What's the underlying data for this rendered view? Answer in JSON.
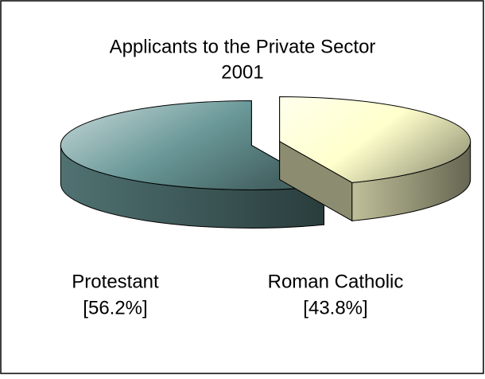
{
  "chart_data": {
    "type": "pie",
    "title": [
      "Applicants to the Private Sector",
      "2001"
    ],
    "categories": [
      "Protestant",
      "Roman Catholic"
    ],
    "values": [
      56.2,
      43.8
    ],
    "value_labels": [
      "[56.2%]",
      "[43.8%]"
    ],
    "colors": [
      "#6a9898",
      "#ffffcc"
    ]
  }
}
